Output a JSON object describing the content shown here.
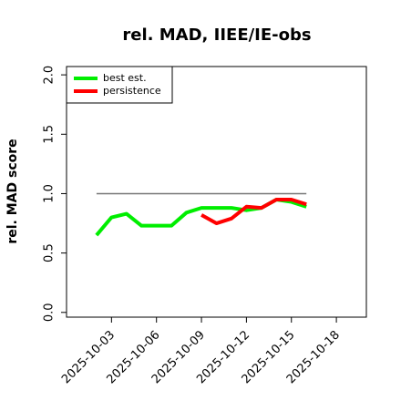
{
  "chart_data": {
    "type": "line",
    "title": "rel. MAD, IIEE/IE-obs",
    "y_label": "rel. MAD score",
    "x": [
      "2025-10-02",
      "2025-10-03",
      "2025-10-04",
      "2025-10-05",
      "2025-10-06",
      "2025-10-07",
      "2025-10-08",
      "2025-10-09",
      "2025-10-10",
      "2025-10-11",
      "2025-10-12",
      "2025-10-13",
      "2025-10-14",
      "2025-10-15",
      "2025-10-16"
    ],
    "series": [
      {
        "name": "best est.",
        "color": "#00ee00",
        "values": [
          0.65,
          0.8,
          0.83,
          0.73,
          0.73,
          0.73,
          0.84,
          0.88,
          0.88,
          0.88,
          0.86,
          0.88,
          0.95,
          0.93,
          0.89
        ]
      },
      {
        "name": "persistence",
        "color": "#ff0000",
        "values": [
          null,
          null,
          null,
          null,
          null,
          null,
          null,
          0.82,
          0.75,
          0.79,
          0.89,
          0.88,
          0.95,
          0.95,
          0.91
        ]
      }
    ],
    "reference_line": 1.0,
    "reference_color": "#777777",
    "xlim": [
      "2025-09-30",
      "2025-10-20"
    ],
    "xticks": [
      "2025-10-03",
      "2025-10-06",
      "2025-10-09",
      "2025-10-12",
      "2025-10-15",
      "2025-10-18"
    ],
    "ylim": [
      -0.04,
      2.07
    ],
    "yticks": [
      {
        "value": 0,
        "label": "0.0"
      },
      {
        "value": 0.5,
        "label": "0.5"
      },
      {
        "value": 1,
        "label": "1.0"
      },
      {
        "value": 1.5,
        "label": "1.5"
      },
      {
        "value": 2,
        "label": "2.0"
      }
    ],
    "legend": "top-left"
  }
}
